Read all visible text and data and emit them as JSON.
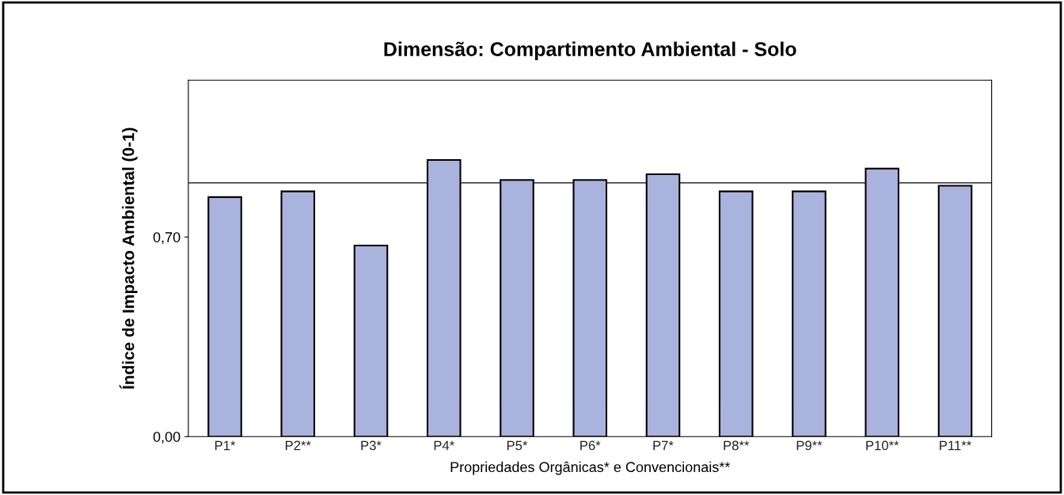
{
  "chart_data": {
    "type": "bar",
    "title": "Dimensão: Compartimento Ambiental - Solo",
    "xlabel": "Propriedades Orgânicas* e Convencionais**",
    "ylabel": "Índice de Impacto Ambiental (0-1)",
    "categories": [
      "P1*",
      "P2**",
      "P3*",
      "P4*",
      "P5*",
      "P6*",
      "P7*",
      "P8**",
      "P9**",
      "P10**",
      "P11**"
    ],
    "values": [
      0.84,
      0.86,
      0.67,
      0.97,
      0.9,
      0.9,
      0.92,
      0.86,
      0.86,
      0.94,
      0.88
    ],
    "color": "#aab2de",
    "ylim": [
      0,
      1.25
    ],
    "yticks": [
      {
        "value": 0,
        "label": "0,00"
      },
      {
        "value": 0.7,
        "label": "0,70"
      }
    ],
    "ref_lines": [
      {
        "axis": "y",
        "value": 0.89,
        "color": "#000000"
      }
    ],
    "grid": false,
    "legend": false
  }
}
